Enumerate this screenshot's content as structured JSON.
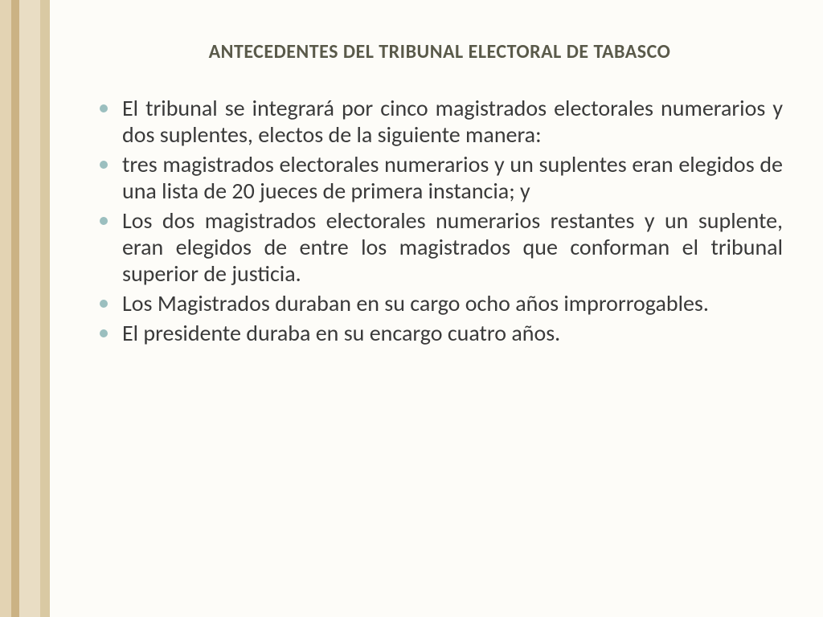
{
  "colors": {
    "background": "#fdfcf8",
    "title_text": "#5a5a4a",
    "body_text": "#3a3a3a",
    "bullet": "#9bbfbf",
    "band1": "#e3d3b3",
    "band2": "#cbb284",
    "band3": "#e9ddc4",
    "band4": "#d9c9a3",
    "band1_w": 14,
    "band2_w": 10,
    "band3_w": 26,
    "band4_w": 12
  },
  "title": "ANTECEDENTES DEL TRIBUNAL ELECTORAL DE TABASCO",
  "bullets": [
    "El tribunal se integrará por cinco magistrados electorales numerarios y dos suplentes, electos de la siguiente manera:",
    "tres magistrados electorales numerarios y un suplentes eran elegidos de una lista de 20 jueces de primera instancia; y",
    "Los dos magistrados electorales numerarios restantes y un suplente, eran elegidos de entre los magistrados que conforman el tribunal superior de justicia.",
    "Los Magistrados duraban en su cargo ocho años improrrogables.",
    "El presidente duraba en su encargo cuatro años."
  ]
}
